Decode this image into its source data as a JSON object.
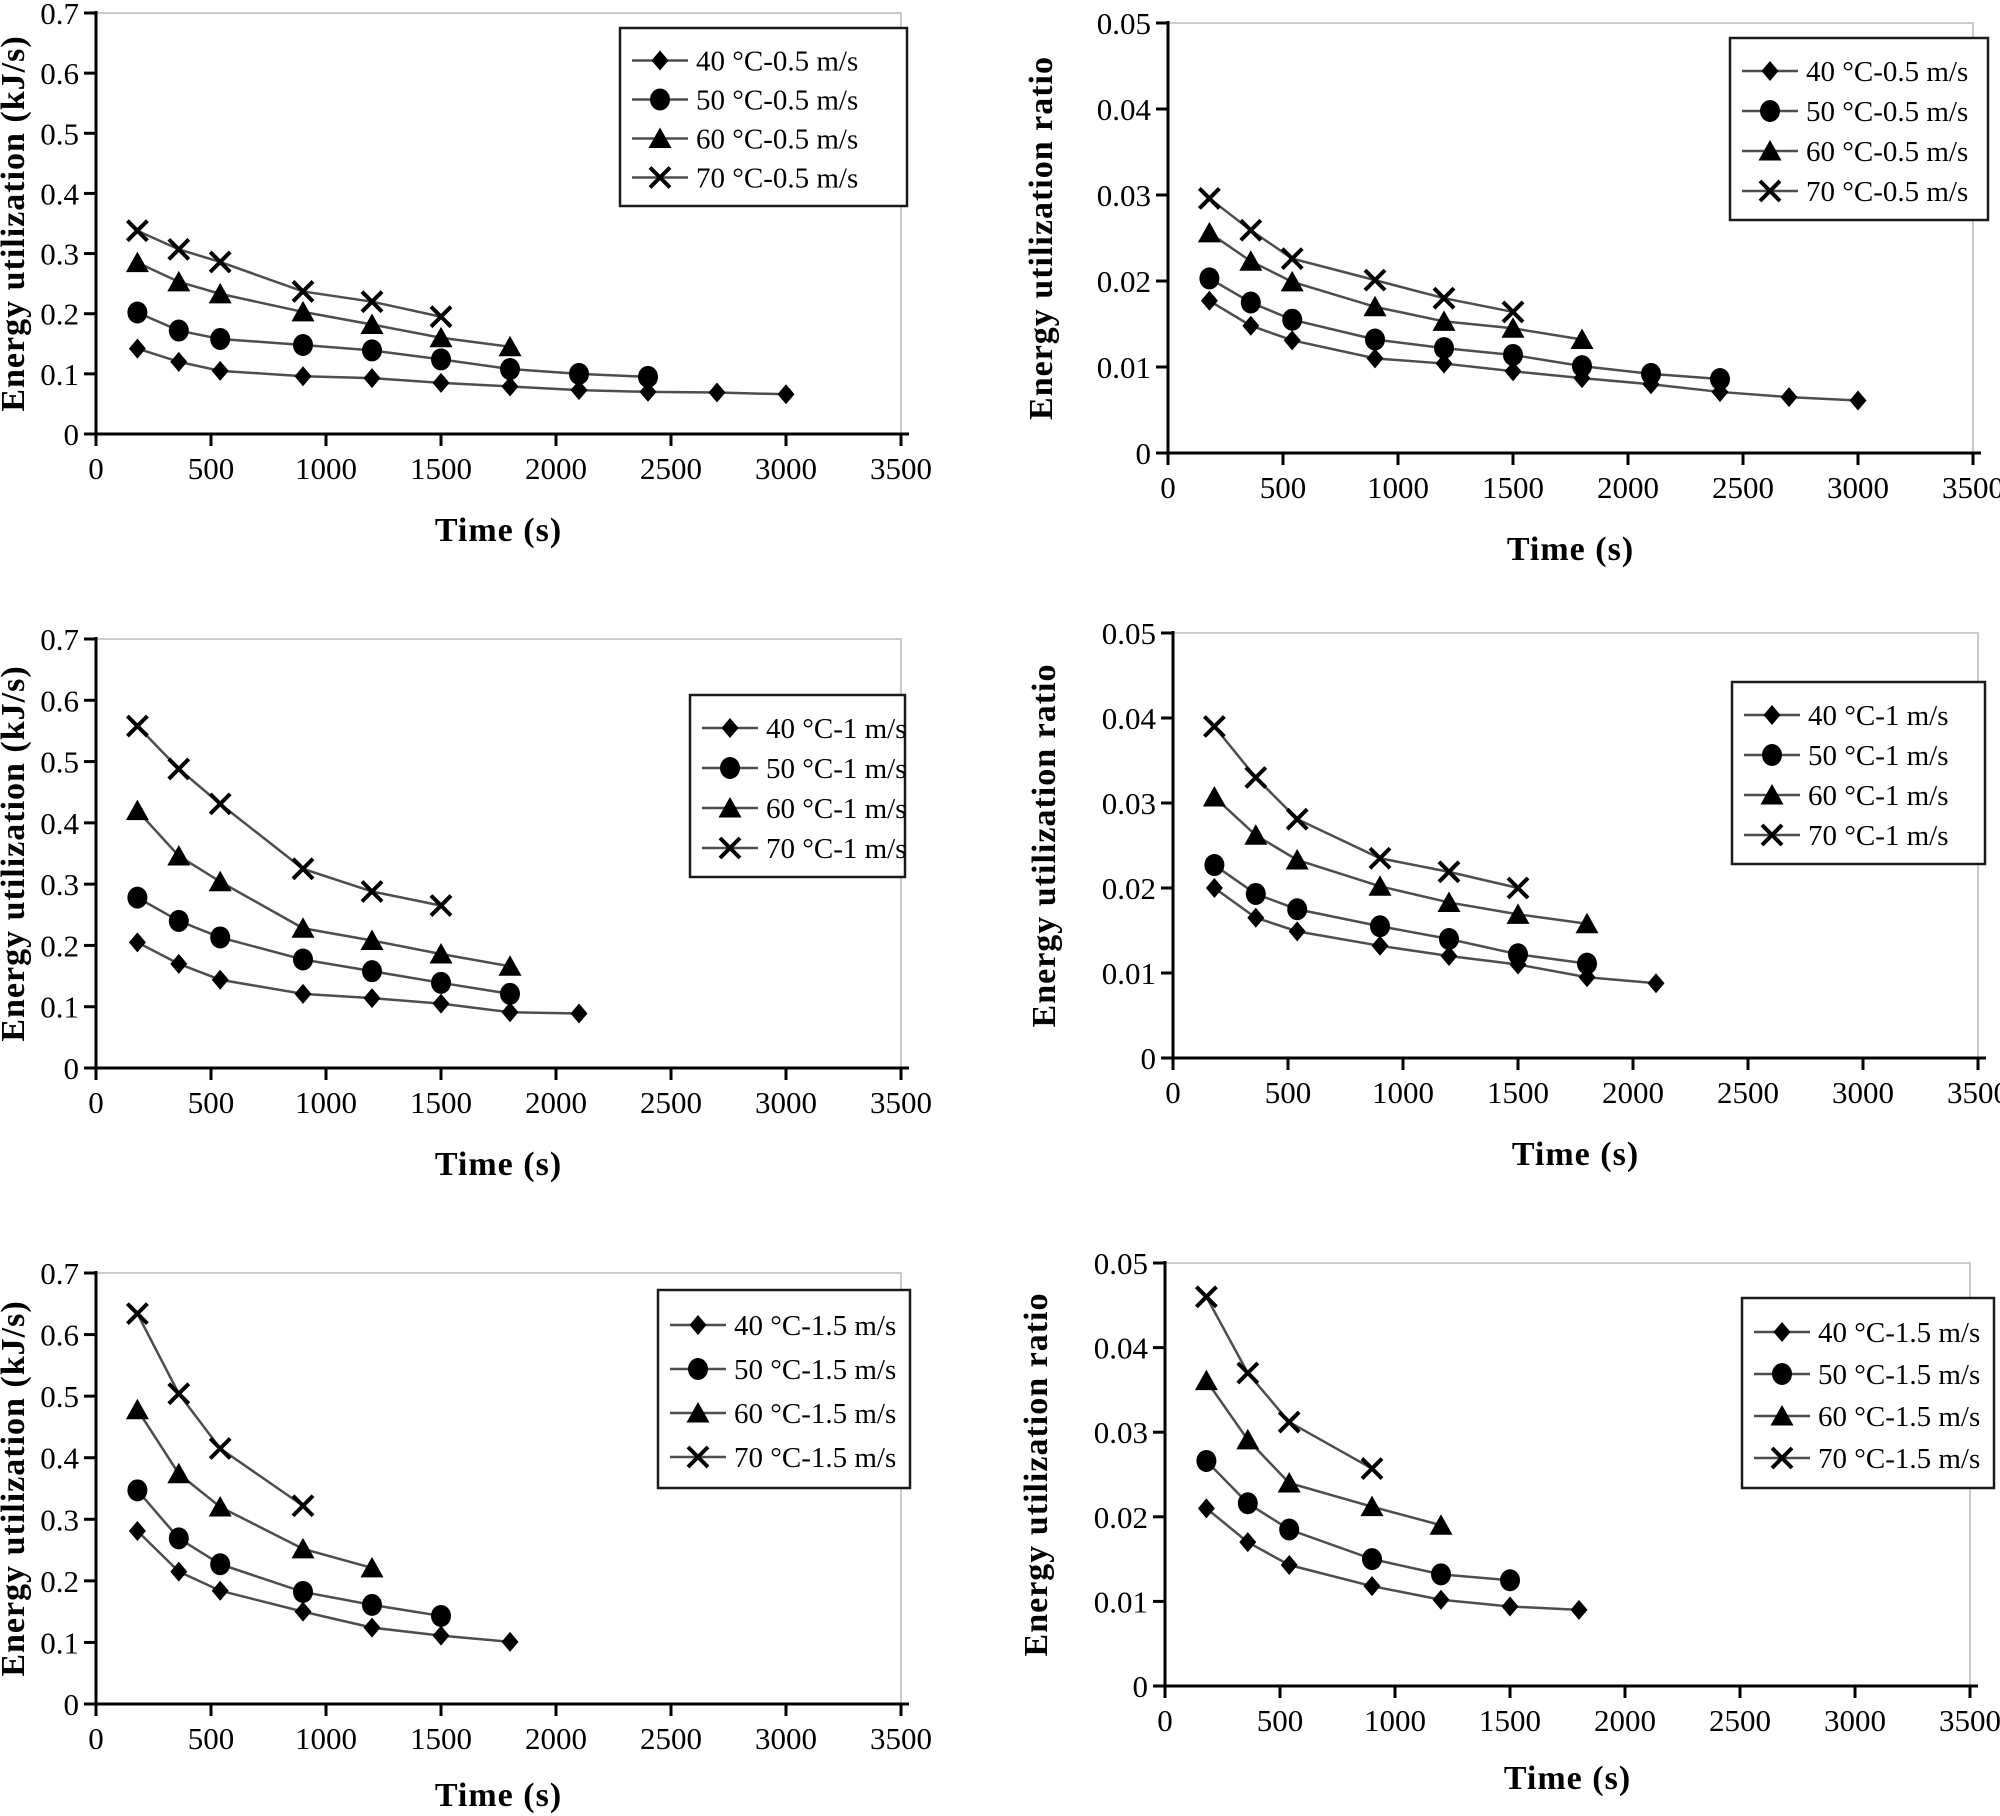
{
  "page": {
    "background": "#ffffff",
    "axis_color": "#000000",
    "line_color": "#4d4d4d",
    "marker_color": "#000000",
    "frame_color": "#cbcbcb",
    "legend_border_color": "#1a1a1a"
  },
  "chart_data": [
    {
      "id": "energy-utilization-0.5ms",
      "type": "line",
      "title": "",
      "xlabel": "Time (s)",
      "ylabel": "Energy utilization (kJ/s)",
      "xlim": [
        0,
        3500
      ],
      "ylim": [
        0,
        0.7
      ],
      "xticks": [
        0,
        500,
        1000,
        1500,
        2000,
        2500,
        3000,
        3500
      ],
      "yticks": [
        0,
        0.1,
        0.2,
        0.3,
        0.4,
        0.5,
        0.6,
        0.7
      ],
      "ytick_labels": [
        "0",
        "0.1",
        "0.2",
        "0.3",
        "0.4",
        "0.5",
        "0.6",
        "0.7"
      ],
      "grid": false,
      "legend_position": "top-right",
      "series": [
        {
          "name": "40 °C-0.5 m/s",
          "marker": "diamond",
          "x": [
            180,
            360,
            540,
            900,
            1200,
            1500,
            1800,
            2100,
            2400,
            2700,
            3000
          ],
          "y": [
            0.142,
            0.12,
            0.105,
            0.096,
            0.093,
            0.085,
            0.079,
            0.073,
            0.07,
            0.069,
            0.066
          ]
        },
        {
          "name": "50 °C-0.5 m/s",
          "marker": "circle",
          "x": [
            180,
            360,
            540,
            900,
            1200,
            1500,
            1800,
            2100,
            2400
          ],
          "y": [
            0.202,
            0.172,
            0.158,
            0.148,
            0.139,
            0.124,
            0.108,
            0.1,
            0.095
          ]
        },
        {
          "name": "60 °C-0.5 m/s",
          "marker": "triangle",
          "x": [
            180,
            360,
            540,
            900,
            1200,
            1500,
            1800
          ],
          "y": [
            0.285,
            0.253,
            0.233,
            0.203,
            0.182,
            0.16,
            0.145
          ]
        },
        {
          "name": "70 °C-0.5 m/s",
          "marker": "x",
          "x": [
            180,
            360,
            540,
            900,
            1200,
            1500
          ],
          "y": [
            0.338,
            0.307,
            0.286,
            0.237,
            0.22,
            0.195
          ]
        }
      ]
    },
    {
      "id": "energy-utilization-ratio-0.5ms",
      "type": "line",
      "title": "",
      "xlabel": "Time (s)",
      "ylabel": "Energy utilization ratio",
      "xlim": [
        0,
        3500
      ],
      "ylim": [
        0,
        0.05
      ],
      "xticks": [
        0,
        500,
        1000,
        1500,
        2000,
        2500,
        3000,
        3500
      ],
      "yticks": [
        0,
        0.01,
        0.02,
        0.03,
        0.04,
        0.05
      ],
      "ytick_labels": [
        "0",
        "0.01",
        "0.02",
        "0.03",
        "0.04",
        "0.05"
      ],
      "grid": false,
      "legend_position": "top-right",
      "series": [
        {
          "name": "40 °C-0.5 m/s",
          "marker": "diamond",
          "x": [
            180,
            360,
            540,
            900,
            1200,
            1500,
            1800,
            2100,
            2400,
            2700,
            3000
          ],
          "y": [
            0.0177,
            0.0148,
            0.0131,
            0.011,
            0.0104,
            0.0095,
            0.0087,
            0.008,
            0.0071,
            0.0065,
            0.0061
          ]
        },
        {
          "name": "50 °C-0.5 m/s",
          "marker": "circle",
          "x": [
            180,
            360,
            540,
            900,
            1200,
            1500,
            1800,
            2100,
            2400
          ],
          "y": [
            0.0203,
            0.0175,
            0.0155,
            0.0132,
            0.0122,
            0.0114,
            0.0101,
            0.0092,
            0.0086
          ]
        },
        {
          "name": "60 °C-0.5 m/s",
          "marker": "triangle",
          "x": [
            180,
            360,
            540,
            900,
            1200,
            1500,
            1800
          ],
          "y": [
            0.0256,
            0.0223,
            0.0199,
            0.017,
            0.0153,
            0.0145,
            0.0132
          ]
        },
        {
          "name": "70 °C-0.5 m/s",
          "marker": "x",
          "x": [
            180,
            360,
            540,
            900,
            1200,
            1500
          ],
          "y": [
            0.0296,
            0.0259,
            0.0226,
            0.0201,
            0.018,
            0.0164
          ]
        }
      ]
    },
    {
      "id": "energy-utilization-1ms",
      "type": "line",
      "title": "",
      "xlabel": "Time (s)",
      "ylabel": "Energy utilization (kJ/s)",
      "xlim": [
        0,
        3500
      ],
      "ylim": [
        0,
        0.7
      ],
      "xticks": [
        0,
        500,
        1000,
        1500,
        2000,
        2500,
        3000,
        3500
      ],
      "yticks": [
        0,
        0.1,
        0.2,
        0.3,
        0.4,
        0.5,
        0.6,
        0.7
      ],
      "ytick_labels": [
        "0",
        "0.1",
        "0.2",
        "0.3",
        "0.4",
        "0.5",
        "0.6",
        "0.7"
      ],
      "grid": false,
      "legend_position": "top-right",
      "series": [
        {
          "name": "40 °C-1 m/s",
          "marker": "diamond",
          "x": [
            180,
            360,
            540,
            900,
            1200,
            1500,
            1800,
            2100
          ],
          "y": [
            0.205,
            0.17,
            0.144,
            0.121,
            0.114,
            0.105,
            0.091,
            0.089
          ]
        },
        {
          "name": "50 °C-1 m/s",
          "marker": "circle",
          "x": [
            180,
            360,
            540,
            900,
            1200,
            1500,
            1800
          ],
          "y": [
            0.278,
            0.24,
            0.213,
            0.177,
            0.158,
            0.139,
            0.121
          ]
        },
        {
          "name": "60 °C-1 m/s",
          "marker": "triangle",
          "x": [
            180,
            360,
            540,
            900,
            1200,
            1500,
            1800
          ],
          "y": [
            0.42,
            0.346,
            0.304,
            0.228,
            0.208,
            0.186,
            0.166
          ]
        },
        {
          "name": "70 °C-1 m/s",
          "marker": "x",
          "x": [
            180,
            360,
            540,
            900,
            1200,
            1500
          ],
          "y": [
            0.558,
            0.488,
            0.431,
            0.325,
            0.288,
            0.265
          ]
        }
      ]
    },
    {
      "id": "energy-utilization-ratio-1ms",
      "type": "line",
      "title": "",
      "xlabel": "Time (s)",
      "ylabel": "Energy utilization ratio",
      "xlim": [
        0,
        3500
      ],
      "ylim": [
        0,
        0.05
      ],
      "xticks": [
        0,
        500,
        1000,
        1500,
        2000,
        2500,
        3000,
        3500
      ],
      "yticks": [
        0,
        0.01,
        0.02,
        0.03,
        0.04,
        0.05
      ],
      "ytick_labels": [
        "0",
        "0.01",
        "0.02",
        "0.03",
        "0.04",
        "0.05"
      ],
      "grid": false,
      "legend_position": "top-right",
      "series": [
        {
          "name": "40 °C-1 m/s",
          "marker": "diamond",
          "x": [
            180,
            360,
            540,
            900,
            1200,
            1500,
            1800,
            2100
          ],
          "y": [
            0.02,
            0.0165,
            0.0149,
            0.0132,
            0.012,
            0.011,
            0.0095,
            0.0088
          ]
        },
        {
          "name": "50 °C-1 m/s",
          "marker": "circle",
          "x": [
            180,
            360,
            540,
            900,
            1200,
            1500,
            1800
          ],
          "y": [
            0.0227,
            0.0193,
            0.0175,
            0.0155,
            0.014,
            0.0122,
            0.0111
          ]
        },
        {
          "name": "60 °C-1 m/s",
          "marker": "triangle",
          "x": [
            180,
            360,
            540,
            900,
            1200,
            1500,
            1800
          ],
          "y": [
            0.0307,
            0.0262,
            0.0233,
            0.0202,
            0.0183,
            0.0169,
            0.0158
          ]
        },
        {
          "name": "70 °C-1 m/s",
          "marker": "x",
          "x": [
            180,
            360,
            540,
            900,
            1200,
            1500
          ],
          "y": [
            0.039,
            0.033,
            0.0281,
            0.0235,
            0.0219,
            0.02
          ]
        }
      ]
    },
    {
      "id": "energy-utilization-1.5ms",
      "type": "line",
      "title": "",
      "xlabel": "Time (s)",
      "ylabel": "Energy utilization (kJ/s)",
      "xlim": [
        0,
        3500
      ],
      "ylim": [
        0,
        0.7
      ],
      "xticks": [
        0,
        500,
        1000,
        1500,
        2000,
        2500,
        3000,
        3500
      ],
      "yticks": [
        0,
        0.1,
        0.2,
        0.3,
        0.4,
        0.5,
        0.6,
        0.7
      ],
      "ytick_labels": [
        "0",
        "0.1",
        "0.2",
        "0.3",
        "0.4",
        "0.5",
        "0.6",
        "0.7"
      ],
      "grid": false,
      "legend_position": "top-right",
      "series": [
        {
          "name": "40 °C-1.5 m/s",
          "marker": "diamond",
          "x": [
            180,
            360,
            540,
            900,
            1200,
            1500,
            1800
          ],
          "y": [
            0.281,
            0.215,
            0.184,
            0.15,
            0.124,
            0.111,
            0.101
          ]
        },
        {
          "name": "50 °C-1.5 m/s",
          "marker": "circle",
          "x": [
            180,
            360,
            540,
            900,
            1200,
            1500
          ],
          "y": [
            0.347,
            0.269,
            0.227,
            0.182,
            0.161,
            0.143
          ]
        },
        {
          "name": "60 °C-1.5 m/s",
          "marker": "triangle",
          "x": [
            180,
            360,
            540,
            900,
            1200
          ],
          "y": [
            0.478,
            0.374,
            0.32,
            0.252,
            0.221
          ]
        },
        {
          "name": "70 °C-1.5 m/s",
          "marker": "x",
          "x": [
            180,
            360,
            540,
            900
          ],
          "y": [
            0.634,
            0.504,
            0.415,
            0.322
          ]
        }
      ]
    },
    {
      "id": "energy-utilization-ratio-1.5ms",
      "type": "line",
      "title": "",
      "xlabel": "Time (s)",
      "ylabel": "Energy utilization ratio",
      "xlim": [
        0,
        3500
      ],
      "ylim": [
        0,
        0.05
      ],
      "xticks": [
        0,
        500,
        1000,
        1500,
        2000,
        2500,
        3000,
        3500
      ],
      "yticks": [
        0,
        0.01,
        0.02,
        0.03,
        0.04,
        0.05
      ],
      "ytick_labels": [
        "0",
        "0.01",
        "0.02",
        "0.03",
        "0.04",
        "0.05"
      ],
      "grid": false,
      "legend_position": "top-right",
      "series": [
        {
          "name": "40 °C-1.5 m/s",
          "marker": "diamond",
          "x": [
            180,
            360,
            540,
            900,
            1200,
            1500,
            1800
          ],
          "y": [
            0.021,
            0.017,
            0.0143,
            0.0118,
            0.0102,
            0.0094,
            0.009
          ]
        },
        {
          "name": "50 °C-1.5 m/s",
          "marker": "circle",
          "x": [
            180,
            360,
            540,
            900,
            1200,
            1500
          ],
          "y": [
            0.0266,
            0.0216,
            0.0185,
            0.015,
            0.0132,
            0.0125
          ]
        },
        {
          "name": "60 °C-1.5 m/s",
          "marker": "triangle",
          "x": [
            180,
            360,
            540,
            900,
            1200
          ],
          "y": [
            0.0361,
            0.0291,
            0.024,
            0.0212,
            0.019
          ]
        },
        {
          "name": "70 °C-1.5 m/s",
          "marker": "x",
          "x": [
            180,
            360,
            540,
            900
          ],
          "y": [
            0.046,
            0.037,
            0.0312,
            0.0257
          ]
        }
      ]
    }
  ]
}
